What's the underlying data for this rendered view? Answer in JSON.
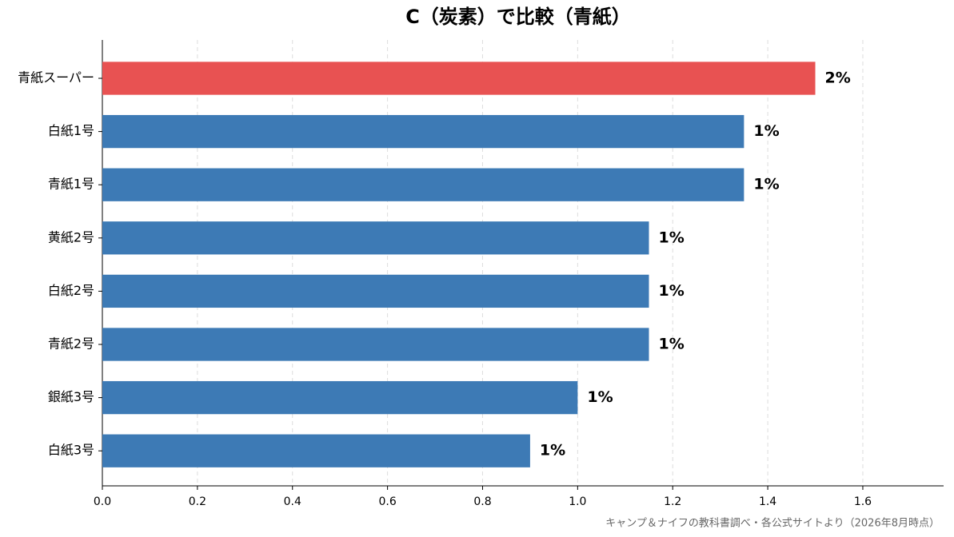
{
  "chart_data": {
    "type": "barh",
    "title": "C（炭素）で比較（青紙）",
    "categories": [
      "青紙スーパー",
      "白紙1号",
      "青紙1号",
      "黄紙2号",
      "白紙2号",
      "青紙2号",
      "銀紙3号",
      "白紙3号"
    ],
    "values": [
      1.5,
      1.35,
      1.35,
      1.15,
      1.15,
      1.15,
      1.0,
      0.9
    ],
    "value_labels": [
      "2%",
      "1%",
      "1%",
      "1%",
      "1%",
      "1%",
      "1%",
      "1%"
    ],
    "colors": [
      "#e85252",
      "#3d7ab5",
      "#3d7ab5",
      "#3d7ab5",
      "#3d7ab5",
      "#3d7ab5",
      "#3d7ab5",
      "#3d7ab5"
    ],
    "xlim": [
      0,
      1.77
    ],
    "xticks": [
      {
        "value": 0,
        "label": "0.0"
      },
      0.2,
      0.4,
      0.6,
      0.8,
      {
        "value": 1,
        "label": "1.0"
      },
      1.2,
      1.4,
      1.6
    ],
    "grid": true,
    "source": "キャンプ＆ナイフの教科書調べ・各公式サイトより（2026年8月時点）"
  }
}
